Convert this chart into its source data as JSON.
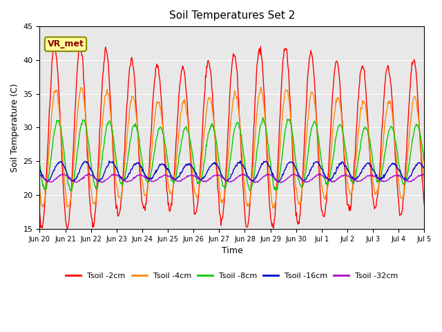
{
  "title": "Soil Temperatures Set 2",
  "xlabel": "Time",
  "ylabel": "Soil Temperature (C)",
  "ylim": [
    15,
    45
  ],
  "annotation": "VR_met",
  "bg_color": "#e8e8e8",
  "line_colors": {
    "2cm": "#ff0000",
    "4cm": "#ff8800",
    "8cm": "#00cc00",
    "16cm": "#0000cc",
    "32cm": "#aa00cc"
  },
  "legend_labels": [
    "Tsoil -2cm",
    "Tsoil -4cm",
    "Tsoil -8cm",
    "Tsoil -16cm",
    "Tsoil -32cm"
  ],
  "xtick_labels": [
    "Jun 20",
    "Jun 21",
    "Jun 22",
    "Jun 23",
    "Jun 24",
    "Jun 25",
    "Jun 26",
    "Jun 27",
    "Jun 28",
    "Jun 29",
    "Jun 30",
    "Jul 1",
    "Jul 2",
    "Jul 3",
    "Jul 4",
    "Jul 5"
  ],
  "ytick_values": [
    15,
    20,
    25,
    30,
    35,
    40,
    45
  ]
}
